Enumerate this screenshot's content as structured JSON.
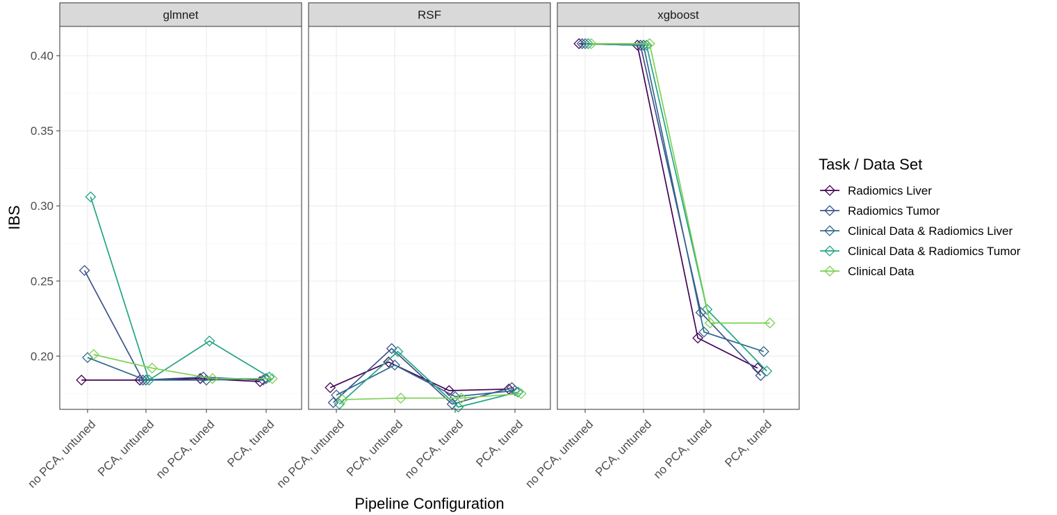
{
  "chart_data": {
    "type": "line",
    "xlabel": "Pipeline Configuration",
    "ylabel": "IBS",
    "ylim": [
      0.1645,
      0.4195
    ],
    "yticks": [
      0.2,
      0.25,
      0.3,
      0.35,
      0.4
    ],
    "ytick_labels": [
      "0.20",
      "0.25",
      "0.30",
      "0.35",
      "0.40"
    ],
    "categories": [
      "no PCA, untuned",
      "PCA, untuned",
      "no PCA, tuned",
      "PCA, tuned"
    ],
    "facets": [
      "glmnet",
      "RSF",
      "xgboost"
    ],
    "legend": {
      "title": "Task / Data Set",
      "placement": "right"
    },
    "series": [
      {
        "name": "Radiomics Liver",
        "color": "#440154",
        "values": {
          "glmnet": [
            0.184,
            0.184,
            0.185,
            0.183
          ],
          "RSF": [
            0.179,
            0.196,
            0.177,
            0.178
          ],
          "xgboost": [
            0.408,
            0.407,
            0.212,
            0.192
          ]
        }
      },
      {
        "name": "Radiomics Tumor",
        "color": "#3b528b",
        "values": {
          "glmnet": [
            0.257,
            0.184,
            0.186,
            0.184
          ],
          "RSF": [
            0.169,
            0.205,
            0.168,
            0.179
          ],
          "xgboost": [
            0.408,
            0.407,
            0.229,
            0.187
          ]
        }
      },
      {
        "name": "Clinical Data & Radiomics Liver",
        "color": "#31688e",
        "values": {
          "glmnet": [
            0.199,
            0.184,
            0.184,
            0.185
          ],
          "RSF": [
            0.174,
            0.194,
            0.173,
            0.177
          ],
          "xgboost": [
            0.408,
            0.407,
            0.216,
            0.203
          ]
        }
      },
      {
        "name": "Clinical Data & Radiomics Tumor",
        "color": "#21a385",
        "values": {
          "glmnet": [
            0.306,
            0.184,
            0.21,
            0.186
          ],
          "RSF": [
            0.168,
            0.203,
            0.166,
            0.176
          ],
          "xgboost": [
            0.408,
            0.407,
            0.231,
            0.19
          ]
        }
      },
      {
        "name": "Clinical Data",
        "color": "#7ad151",
        "values": {
          "glmnet": [
            0.201,
            0.192,
            0.185,
            0.185
          ],
          "RSF": [
            0.171,
            0.172,
            0.172,
            0.175
          ],
          "xgboost": [
            0.408,
            0.408,
            0.222,
            0.222
          ]
        }
      }
    ]
  }
}
